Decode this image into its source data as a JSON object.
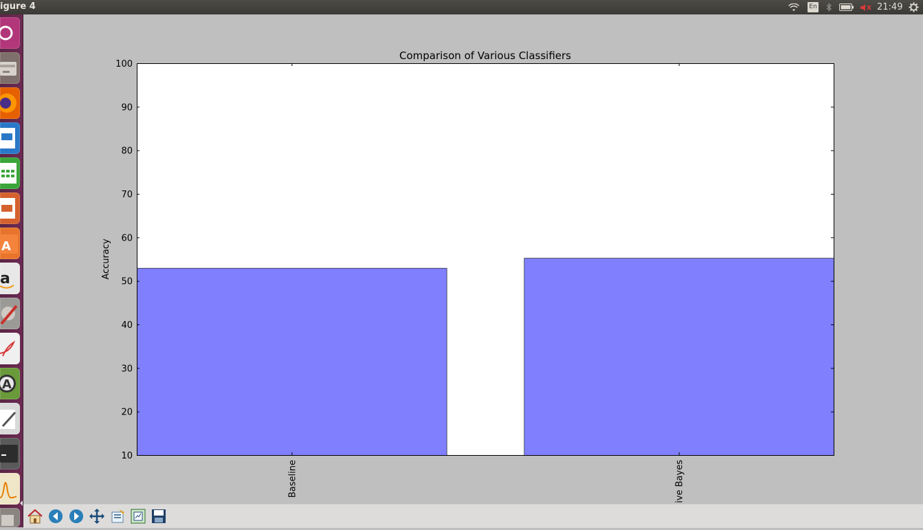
{
  "window": {
    "title": "igure 4"
  },
  "top_panel": {
    "keyboard": "En",
    "clock": "21:49",
    "icons": [
      "wifi-icon",
      "keyboard-layout-icon",
      "bluetooth-icon",
      "battery-icon",
      "volume-muted-icon",
      "settings-gear-icon"
    ]
  },
  "launcher": {
    "items": [
      "ubuntu-dash-icon",
      "files-icon",
      "firefox-icon",
      "libreoffice-writer-icon",
      "libreoffice-calc-icon",
      "libreoffice-impress-icon",
      "software-center-icon",
      "amazon-icon",
      "system-settings-icon",
      "document-viewer-icon",
      "update-manager-icon",
      "text-editor-icon",
      "terminal-icon",
      "plot-app-icon",
      "trash-icon"
    ]
  },
  "toolbar": {
    "buttons": [
      "home-icon",
      "back-icon",
      "forward-icon",
      "pan-icon",
      "zoom-icon",
      "configure-subplots-icon",
      "save-icon"
    ]
  },
  "colors": {
    "bar": "#8080ff",
    "figure_bg": "#bfbfbf",
    "axes_bg": "#ffffff"
  },
  "chart_data": {
    "type": "bar",
    "title": "Comparison of Various Classifiers",
    "xlabel": "",
    "ylabel": "Accuracy",
    "categories": [
      "Baseline",
      "Naive Bayes"
    ],
    "visible_tick_labels": [
      "Baseline",
      "ive Bayes"
    ],
    "values": [
      53,
      55.3
    ],
    "ylim": [
      10,
      100
    ],
    "yticks": [
      10,
      20,
      30,
      40,
      50,
      60,
      70,
      80,
      90,
      100
    ],
    "grid": false
  }
}
